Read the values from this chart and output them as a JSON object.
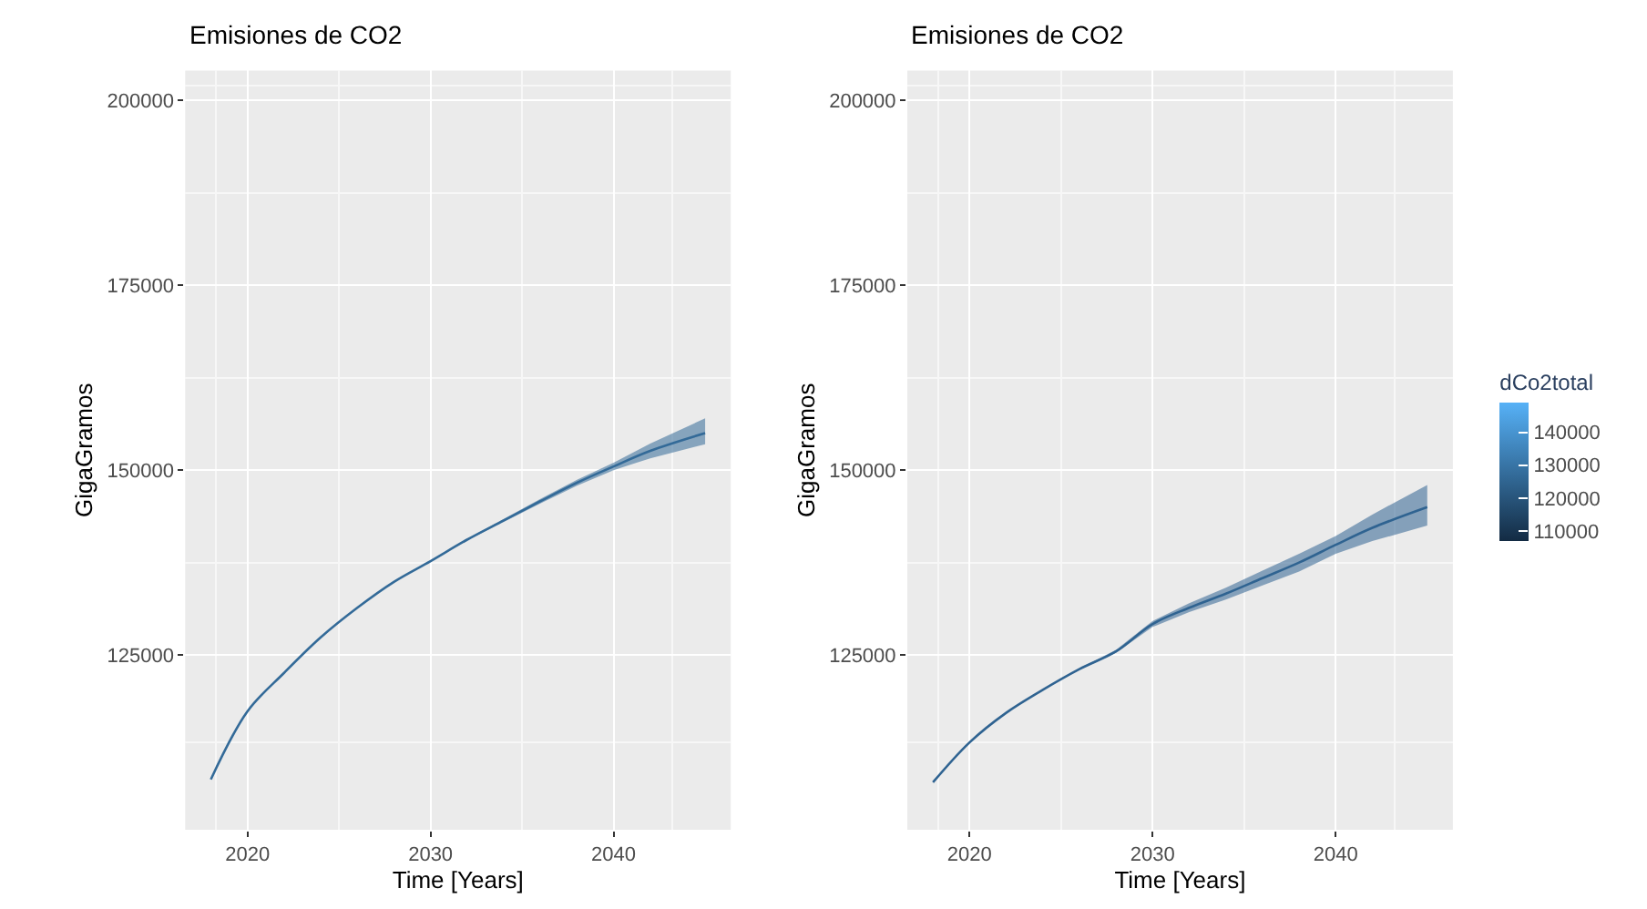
{
  "chart_data": [
    {
      "type": "line",
      "title": "Emisiones de CO2",
      "xlabel": "Time [Years]",
      "ylabel": "GigaGramos",
      "x": [
        2018,
        2020,
        2022,
        2024,
        2026,
        2028,
        2030,
        2032,
        2034,
        2036,
        2038,
        2040,
        2042,
        2045
      ],
      "series": [
        {
          "color": "#336a98",
          "values": [
            108200,
            117400,
            122600,
            127400,
            131400,
            134900,
            137700,
            140600,
            143200,
            145800,
            148300,
            150500,
            152600,
            155000
          ],
          "lower": [
            108200,
            117400,
            122600,
            127400,
            131400,
            134900,
            137700,
            140500,
            143000,
            145500,
            147900,
            150000,
            151600,
            153500
          ],
          "upper": [
            108200,
            117400,
            122600,
            127400,
            131400,
            134900,
            137700,
            140700,
            143400,
            146100,
            148700,
            151000,
            153600,
            157000
          ]
        }
      ],
      "xlim": [
        2016.6,
        2046.4
      ],
      "ylim": [
        101400,
        204000
      ],
      "xticks": [
        2020,
        2030,
        2040
      ],
      "yticks": [
        125000,
        150000,
        175000,
        200000
      ],
      "grid": true,
      "marker": "none",
      "line_style": "solid"
    },
    {
      "type": "line",
      "title": "Emisiones de CO2",
      "xlabel": "Time [Years]",
      "ylabel": "GigaGramos",
      "x": [
        2018,
        2020,
        2022,
        2024,
        2026,
        2028,
        2030,
        2032,
        2034,
        2036,
        2038,
        2040,
        2042,
        2045
      ],
      "series": [
        {
          "color": "#2f6391",
          "values": [
            107800,
            113200,
            117200,
            120300,
            123100,
            125500,
            129200,
            131400,
            133300,
            135400,
            137500,
            139900,
            142200,
            145000
          ],
          "lower": [
            107800,
            113200,
            117200,
            120300,
            123000,
            125300,
            128800,
            130800,
            132500,
            134400,
            136300,
            138700,
            140400,
            142500
          ],
          "upper": [
            107800,
            113200,
            117200,
            120300,
            123200,
            125700,
            129600,
            132000,
            134100,
            136400,
            138700,
            141100,
            144000,
            148000
          ]
        }
      ],
      "xlim": [
        2016.6,
        2046.4
      ],
      "ylim": [
        101400,
        204000
      ],
      "xticks": [
        2020,
        2030,
        2040
      ],
      "yticks": [
        125000,
        150000,
        175000,
        200000
      ],
      "grid": true,
      "marker": "none",
      "line_style": "solid",
      "clabel": "dCo2total",
      "clim": [
        107000,
        149000
      ],
      "cticks": [
        110000,
        120000,
        130000,
        140000
      ]
    }
  ]
}
